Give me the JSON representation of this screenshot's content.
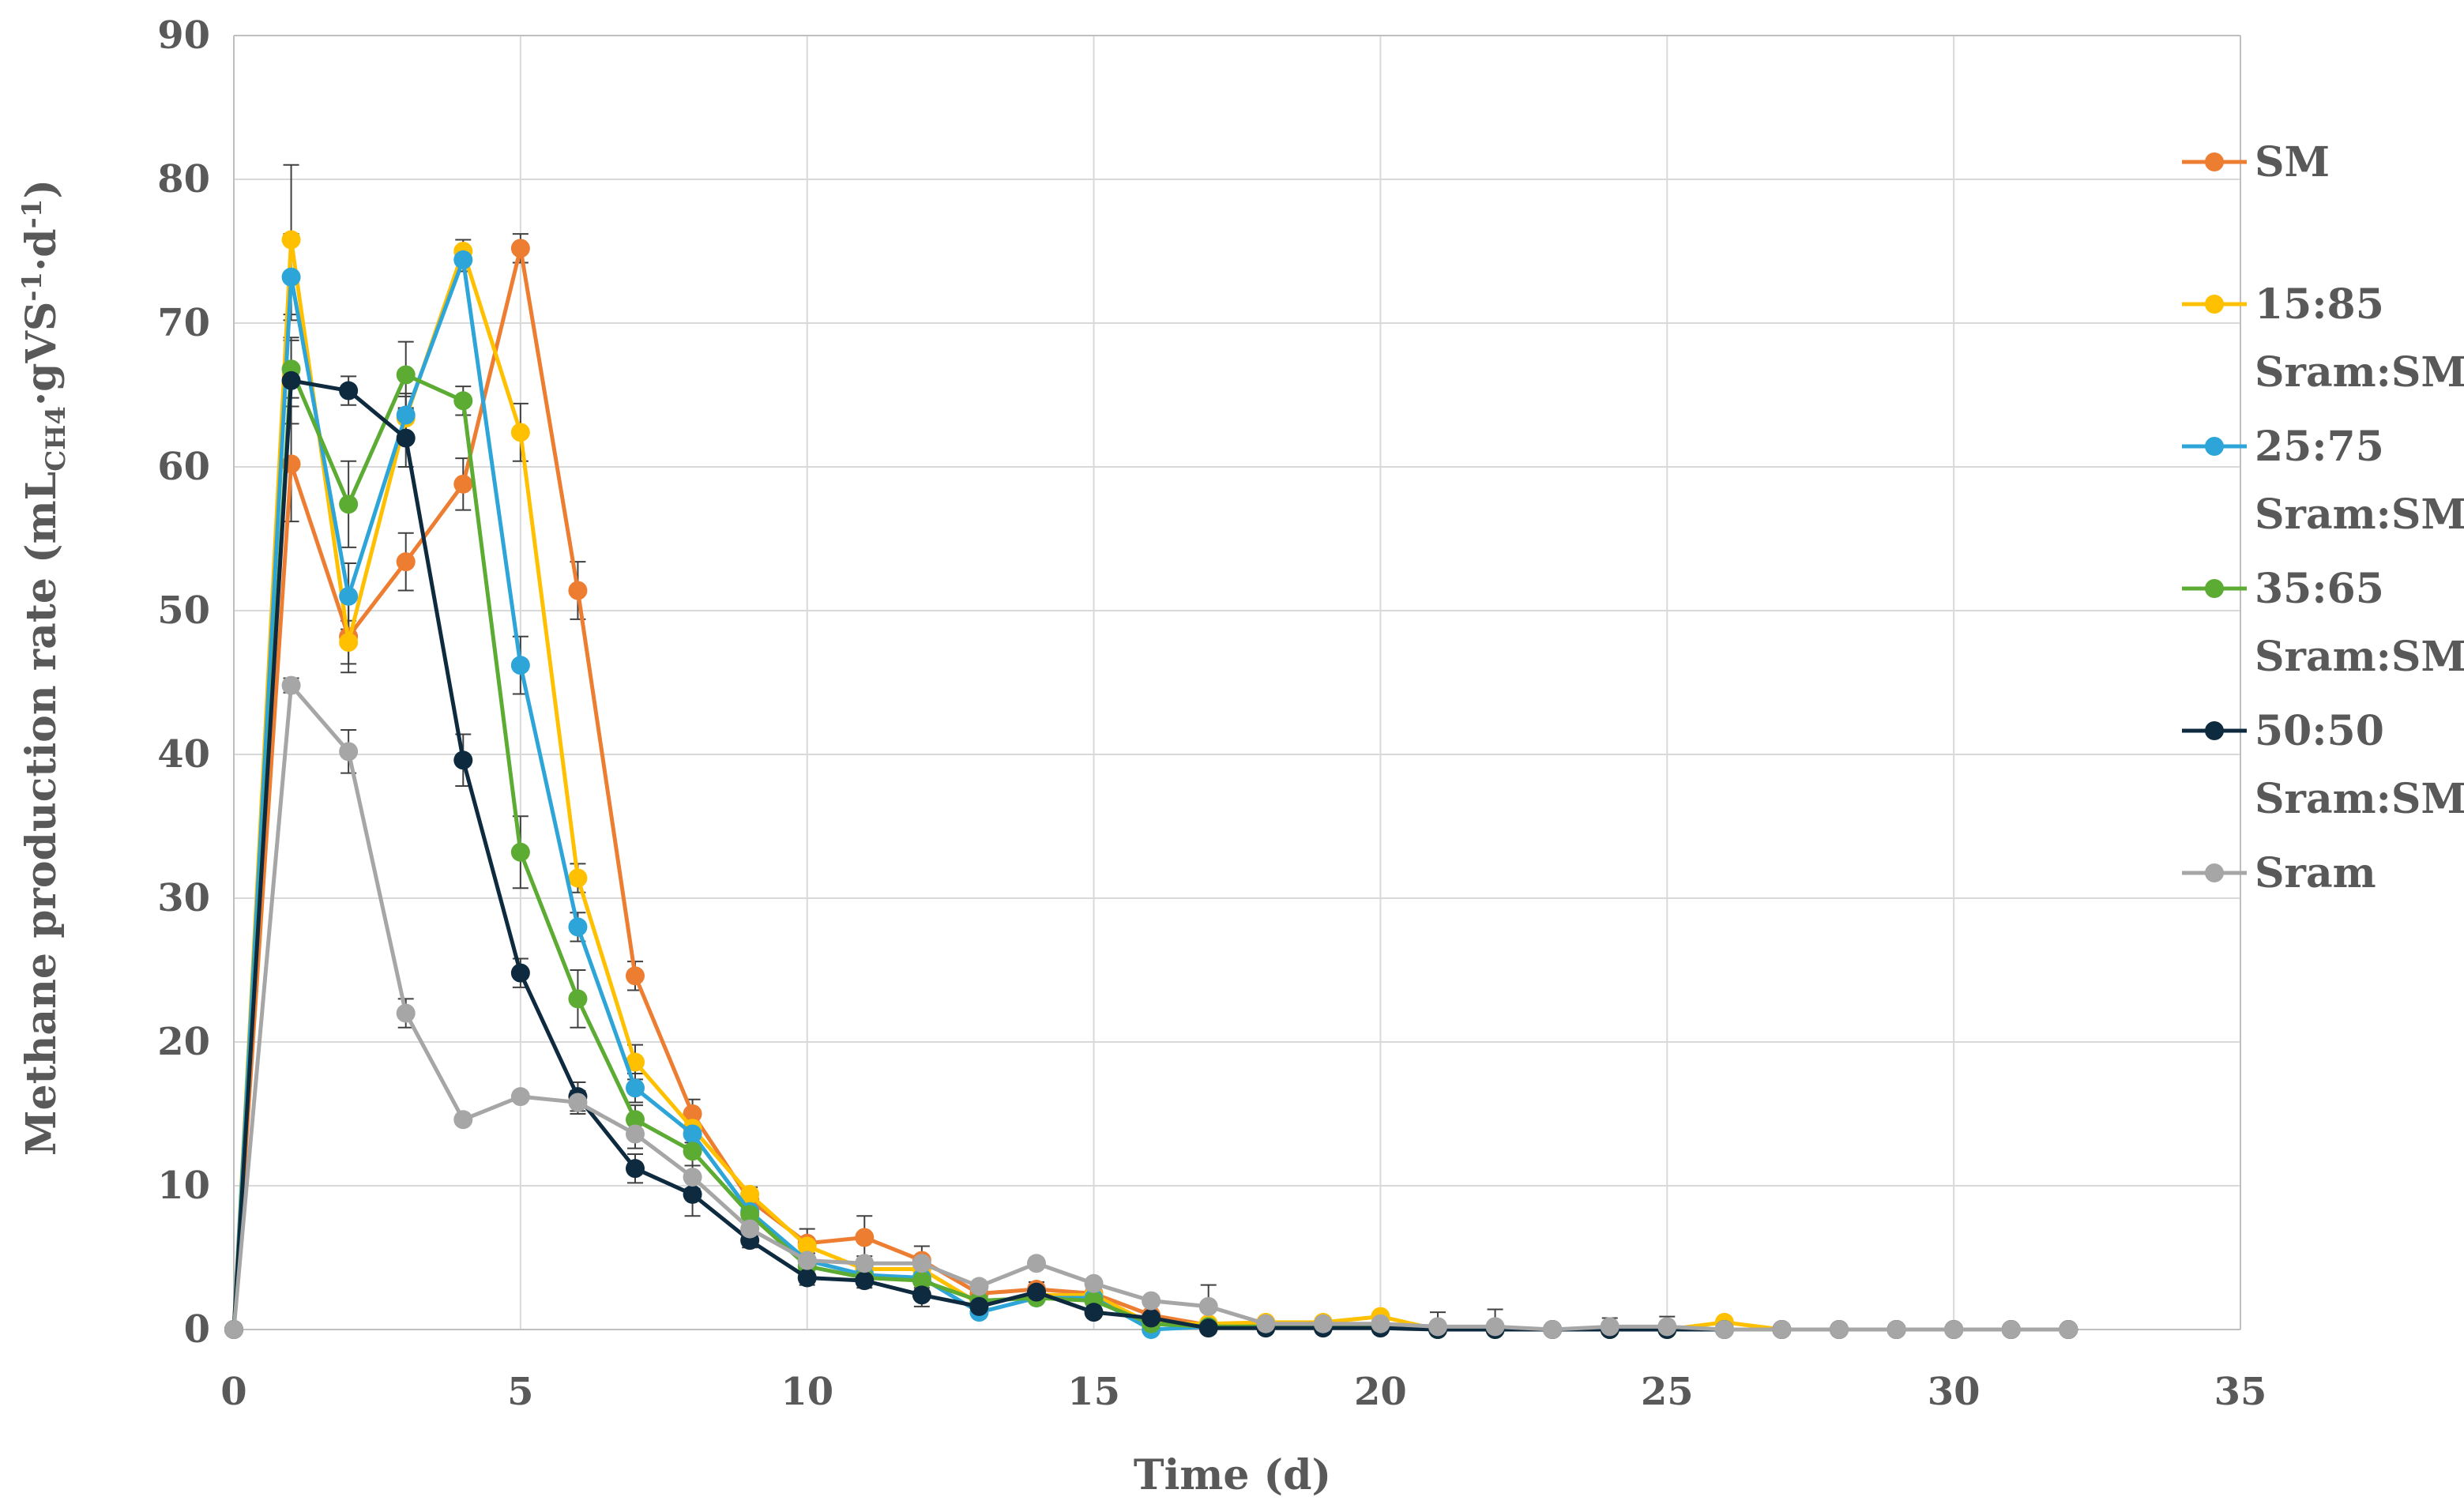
{
  "chart_data": {
    "type": "line",
    "xlabel": "Time (d)",
    "ylabel": {
      "main": "Methane production rate (mL",
      "sub1": "CH4",
      "mid": "·gVS",
      "sup1": "-1",
      "mid2": "·d",
      "sup2": "-1",
      "end": ")"
    },
    "xlim": [
      0,
      35
    ],
    "ylim": [
      0,
      90
    ],
    "x_ticks": [
      "0",
      "5",
      "10",
      "15",
      "20",
      "25",
      "30",
      "35"
    ],
    "y_ticks": [
      "0",
      "10",
      "20",
      "30",
      "40",
      "50",
      "60",
      "70",
      "80",
      "90"
    ],
    "grid": true,
    "legend_position": "right",
    "x": [
      0,
      1,
      2,
      3,
      4,
      5,
      6,
      7,
      8,
      9,
      10,
      11,
      12,
      13,
      14,
      15,
      16,
      17,
      18,
      19,
      20,
      21,
      22,
      23,
      24,
      25,
      26,
      27,
      28,
      29,
      30,
      31,
      32
    ],
    "series": [
      {
        "name": "SM",
        "color": "#ED7D31",
        "values": [
          0,
          60.2,
          48.2,
          53.4,
          58.8,
          75.2,
          51.4,
          24.6,
          15,
          9,
          6,
          6.4,
          4.8,
          2.5,
          2.8,
          2.5,
          1,
          0.3,
          0.3,
          0.3,
          0.3,
          0,
          0,
          0,
          0,
          0,
          0,
          0,
          0,
          0,
          0,
          0,
          0
        ],
        "errors": [
          0,
          4,
          2.5,
          2,
          1.8,
          1,
          2,
          1,
          1,
          0.5,
          1,
          1.5,
          1,
          0.5,
          0.5,
          0.5,
          0.3,
          0.3,
          0.2,
          0.2,
          0.2,
          0.2,
          0.2,
          0.2,
          0.2,
          0.2,
          0.2,
          0,
          0,
          0,
          0,
          0,
          0
        ]
      },
      {
        "name": "15:85 Sram:SM",
        "color": "#FFC000",
        "values": [
          0,
          75.8,
          47.8,
          63.4,
          75,
          62.4,
          31.4,
          18.6,
          14,
          9.4,
          5.8,
          4.2,
          4.2,
          1.8,
          2.4,
          2.4,
          0.4,
          0.4,
          0.5,
          0.5,
          0.9,
          0,
          0,
          0,
          0,
          0,
          0.5,
          0,
          0,
          0,
          0,
          0,
          0
        ],
        "errors": [
          0,
          5.2,
          1.5,
          1.5,
          0.8,
          2,
          1,
          1.2,
          1,
          0.5,
          0.5,
          0.5,
          0.5,
          0.3,
          0.3,
          0.3,
          0.3,
          0.2,
          0.2,
          0.2,
          0.3,
          0.2,
          0.2,
          0.2,
          0.2,
          0.2,
          0.2,
          0,
          0,
          0,
          0,
          0,
          0
        ]
      },
      {
        "name": "25:75 Sram:SM",
        "color": "#2EA5D8",
        "values": [
          0,
          73.2,
          51,
          63.6,
          74.4,
          46.2,
          28,
          16.8,
          13.6,
          8.2,
          4.8,
          3.8,
          3.6,
          1.2,
          2.2,
          2.2,
          0,
          0.2,
          0.2,
          0.2,
          0.2,
          0,
          0,
          0,
          0,
          0,
          0,
          0,
          0,
          0,
          0,
          0,
          0
        ],
        "errors": [
          0,
          3,
          2.3,
          1.5,
          0.8,
          2,
          1,
          1,
          0.8,
          0.5,
          0.5,
          0.5,
          0.5,
          0.3,
          0.3,
          0.3,
          0.2,
          0.2,
          0.2,
          0.2,
          0.2,
          0.2,
          0.2,
          0.2,
          0.2,
          0.2,
          0.2,
          0,
          0,
          0,
          0,
          0,
          0
        ]
      },
      {
        "name": "35:65 Sram:SM",
        "color": "#5CAB33",
        "values": [
          0,
          66.8,
          57.4,
          66.4,
          64.6,
          33.2,
          23,
          14.6,
          12.4,
          8,
          4.4,
          3.6,
          3.4,
          2,
          2.2,
          2,
          0.4,
          0.2,
          0.2,
          0.2,
          0.2,
          0,
          0,
          0,
          0,
          0,
          0,
          0,
          0,
          0,
          0,
          0,
          0
        ],
        "errors": [
          0,
          2,
          3,
          2.3,
          1,
          2.5,
          2,
          1,
          1,
          0.5,
          0.5,
          0.5,
          0.5,
          0.3,
          0.3,
          0.3,
          0.2,
          0.2,
          0.2,
          0.2,
          0.2,
          0.2,
          0.2,
          0.2,
          0.2,
          0.2,
          0.2,
          0,
          0,
          0,
          0,
          0,
          0
        ]
      },
      {
        "name": "50:50 Sram:SM",
        "color": "#0E2A3F",
        "values": [
          0,
          66,
          65.3,
          62,
          39.6,
          24.8,
          16.2,
          11.2,
          9.4,
          6.2,
          3.6,
          3.4,
          2.4,
          1.6,
          2.6,
          1.2,
          0.8,
          0.1,
          0.1,
          0.1,
          0.1,
          0,
          0,
          0,
          0,
          0,
          0,
          0,
          0,
          0,
          0,
          0,
          0
        ],
        "errors": [
          0,
          3,
          1,
          2,
          1.8,
          1,
          1,
          1,
          1.5,
          0.5,
          0.5,
          0.5,
          0.8,
          0.3,
          0.3,
          0.3,
          0.3,
          0.2,
          0.2,
          0.2,
          0.2,
          0.2,
          0.2,
          0.2,
          0.2,
          0.2,
          0.2,
          0,
          0,
          0,
          0,
          0,
          0
        ]
      },
      {
        "name": "Sram",
        "color": "#A6A6A6",
        "values": [
          0,
          44.8,
          40.2,
          22,
          14.6,
          16.2,
          15.8,
          13.6,
          10.6,
          7,
          4.8,
          4.6,
          4.6,
          3,
          4.6,
          3.2,
          2,
          1.6,
          0.4,
          0.4,
          0.4,
          0.2,
          0.2,
          0,
          0.2,
          0.2,
          0,
          0,
          0,
          0,
          0,
          0,
          0
        ],
        "errors": [
          0,
          0.5,
          1.5,
          1,
          0.3,
          0.3,
          0.8,
          1,
          0.8,
          0.5,
          0.5,
          0.5,
          0.5,
          0.3,
          0.3,
          0.3,
          0.3,
          1.5,
          0.3,
          0.3,
          0.3,
          1,
          1.2,
          0.3,
          0.6,
          0.7,
          0.3,
          0,
          0,
          0,
          0,
          0,
          0
        ]
      }
    ],
    "legend": [
      {
        "line1": "SM",
        "line2": ""
      },
      {
        "line1": "15:85",
        "line2": "Sram:SM"
      },
      {
        "line1": "25:75",
        "line2": "Sram:SM"
      },
      {
        "line1": "35:65",
        "line2": "Sram:SM"
      },
      {
        "line1": "50:50",
        "line2": "Sram:SM"
      },
      {
        "line1": "Sram",
        "line2": ""
      }
    ]
  }
}
